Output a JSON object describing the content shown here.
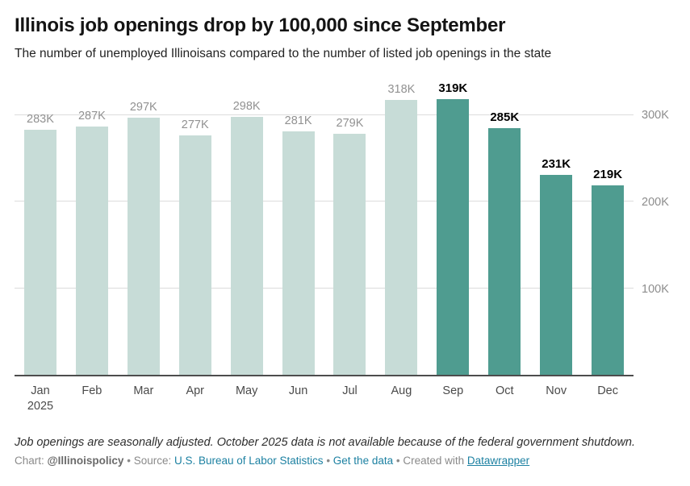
{
  "header": {
    "title": "Illinois job openings drop by 100,000 since September",
    "subtitle": "The number of unemployed Illinoisans compared to the number of listed job openings in the state"
  },
  "chart_data": {
    "type": "bar",
    "title": "Illinois job openings drop by 100,000 since September",
    "xlabel": "",
    "ylabel": "",
    "ylim": [
      0,
      340
    ],
    "grid": true,
    "legend": "none",
    "unit": "thousands",
    "categories": [
      "Jan 2025",
      "Feb",
      "Mar",
      "Apr",
      "May",
      "Jun",
      "Jul",
      "Aug",
      "Sep",
      "Oct",
      "Nov",
      "Dec"
    ],
    "values": [
      283,
      287,
      297,
      277,
      298,
      281,
      279,
      318,
      319,
      285,
      231,
      219
    ],
    "months": [
      {
        "label": "Jan",
        "sublabel": "2025",
        "value": 283,
        "display": "283K",
        "highlight": false
      },
      {
        "label": "Feb",
        "sublabel": "",
        "value": 287,
        "display": "287K",
        "highlight": false
      },
      {
        "label": "Mar",
        "sublabel": "",
        "value": 297,
        "display": "297K",
        "highlight": false
      },
      {
        "label": "Apr",
        "sublabel": "",
        "value": 277,
        "display": "277K",
        "highlight": false
      },
      {
        "label": "May",
        "sublabel": "",
        "value": 298,
        "display": "298K",
        "highlight": false
      },
      {
        "label": "Jun",
        "sublabel": "",
        "value": 281,
        "display": "281K",
        "highlight": false
      },
      {
        "label": "Jul",
        "sublabel": "",
        "value": 279,
        "display": "279K",
        "highlight": false
      },
      {
        "label": "Aug",
        "sublabel": "",
        "value": 318,
        "display": "318K",
        "highlight": false
      },
      {
        "label": "Sep",
        "sublabel": "",
        "value": 319,
        "display": "319K",
        "highlight": true
      },
      {
        "label": "Oct",
        "sublabel": "",
        "value": 285,
        "display": "285K",
        "highlight": true
      },
      {
        "label": "Nov",
        "sublabel": "",
        "value": 231,
        "display": "231K",
        "highlight": true
      },
      {
        "label": "Dec",
        "sublabel": "",
        "value": 219,
        "display": "219K",
        "highlight": true
      }
    ],
    "yticks": [
      {
        "value": 100,
        "label": "100K"
      },
      {
        "value": 200,
        "label": "200K"
      },
      {
        "value": 300,
        "label": "300K"
      }
    ],
    "colors": {
      "bar_light": "#c7dcd7",
      "bar_dark": "#4f9c90",
      "value_label_light": "#919191",
      "value_label_dark": "#000000",
      "gridline": "#dcdcdc",
      "baseline": "#4d4d4d",
      "link": "#1d81a2"
    }
  },
  "footer": {
    "note": "Job openings are seasonally adjusted. October 2025 data is not available because of the federal government shutdown.",
    "byline": [
      {
        "text": "Chart: ",
        "style": "plain",
        "name": "byline-chart-label"
      },
      {
        "text": "@Illinoispolicy",
        "style": "bold",
        "name": "byline-author"
      },
      {
        "text": " • ",
        "style": "plain",
        "name": "byline-separator"
      },
      {
        "text": "Source: ",
        "style": "plain",
        "name": "byline-source-label"
      },
      {
        "text": "U.S. Bureau of Labor Statistics",
        "style": "link",
        "name": "source-link"
      },
      {
        "text": " • ",
        "style": "plain",
        "name": "byline-separator"
      },
      {
        "text": "Get the data",
        "style": "link",
        "name": "get-the-data-link"
      },
      {
        "text": " • ",
        "style": "plain",
        "name": "byline-separator"
      },
      {
        "text": "Created with ",
        "style": "plain",
        "name": "byline-created-with"
      },
      {
        "text": "Datawrapper",
        "style": "link-underline",
        "name": "datawrapper-link"
      }
    ]
  }
}
